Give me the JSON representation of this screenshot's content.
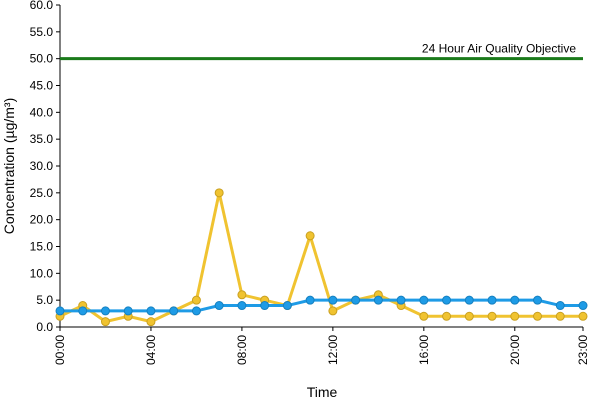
{
  "chart_data": {
    "type": "line",
    "x_label": "Time",
    "y_label": "Concentration (µg/m³)",
    "categories": [
      "00:00",
      null,
      null,
      null,
      "04:00",
      null,
      null,
      null,
      "08:00",
      null,
      null,
      null,
      "12:00",
      null,
      null,
      null,
      "16:00",
      null,
      null,
      null,
      "20:00",
      null,
      null,
      "23:00"
    ],
    "series": [
      {
        "color": "#f0c330",
        "values": [
          2,
          4,
          1,
          2,
          1,
          3,
          5,
          25,
          6,
          5,
          4,
          17,
          3,
          5,
          6,
          4,
          2,
          2,
          2,
          2,
          2,
          2,
          2,
          2
        ]
      },
      {
        "color": "#1e9be6",
        "values": [
          3,
          3,
          3,
          3,
          3,
          3,
          3,
          4,
          4,
          4,
          4,
          5,
          5,
          5,
          5,
          5,
          5,
          5,
          5,
          5,
          5,
          5,
          4,
          4
        ]
      }
    ],
    "objective": {
      "value": 50,
      "label": "24 Hour Air Quality Objective",
      "color": "#1a7a1a"
    },
    "ylim": [
      0,
      60
    ],
    "yticks": [
      {
        "value": 0,
        "label": "0.0"
      },
      {
        "value": 5,
        "label": "5.0"
      },
      {
        "value": 10,
        "label": "10.0"
      },
      {
        "value": 15,
        "label": "15.0"
      },
      {
        "value": 20,
        "label": "20.0"
      },
      {
        "value": 25,
        "label": "25.0"
      },
      {
        "value": 30,
        "label": "30.0"
      },
      {
        "value": 35,
        "label": "35.0"
      },
      {
        "value": 40,
        "label": "40.0"
      },
      {
        "value": 45,
        "label": "45.0"
      },
      {
        "value": 50,
        "label": "50.0"
      },
      {
        "value": 55,
        "label": "55.0"
      },
      {
        "value": 60,
        "label": "60.0"
      }
    ],
    "grid": false
  }
}
